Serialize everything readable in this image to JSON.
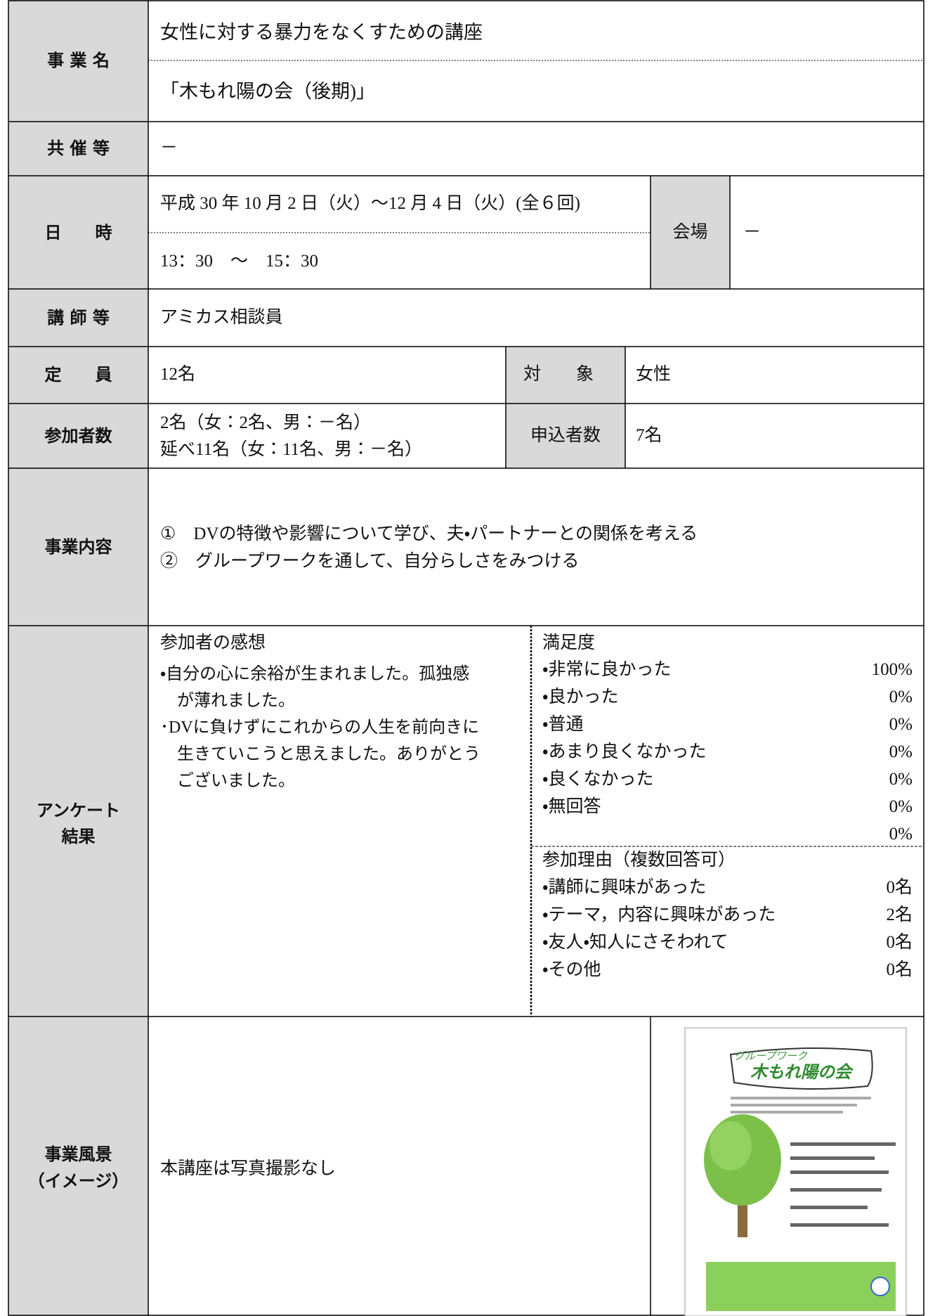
{
  "name": {
    "label": "事 業 名",
    "line1": "女性に対する暴力をなくすための講座",
    "line2": "「木もれ陽の会（後期)」"
  },
  "cosponsor": {
    "label": "共 催 等",
    "value": "－"
  },
  "datetime": {
    "label": "日　　時",
    "date": "平成 30 年 10 月 2 日（火）～12 月 4 日（火）(全６回)",
    "time": "13：30　～　15：30",
    "venue_label": "会場",
    "venue": "－"
  },
  "lecturer": {
    "label": "講 師 等",
    "value": "アミカス相談員"
  },
  "capacity": {
    "label": "定　　員",
    "value": "12名",
    "target_label": "対　　象",
    "target": "女性"
  },
  "participants": {
    "label": "参加者数",
    "line1": "2名（女：2名、男：－名）",
    "line2": "延べ11名（女：11名、男：－名）",
    "applicants_label": "申込者数",
    "applicants": "7名"
  },
  "content": {
    "label": "事業内容",
    "items": [
      "①　DVの特徴や影響について学び、夫・パートナーとの関係を考える",
      "②　グループワークを通して、自分らしさをみつける"
    ]
  },
  "survey": {
    "label": [
      "アンケート",
      "結果"
    ],
    "impressions": {
      "title": "参加者の感想",
      "lines": [
        "・自分の心に余裕が生まれました。孤独感",
        "　が薄れました。",
        "･DVに負けずにこれからの人生を前向きに",
        "　生きていこうと思えました。ありがとう",
        "　ございました。"
      ]
    },
    "satisfaction": {
      "title": "満足度",
      "items": [
        [
          "・非常に良かった",
          "100%"
        ],
        [
          "・良かった",
          "0%"
        ],
        [
          "・普通",
          "0%"
        ],
        [
          "・あまり良くなかった",
          "0%"
        ],
        [
          "・良くなかった",
          "0%"
        ],
        [
          "・無回答",
          "0%"
        ]
      ],
      "extra": "0%"
    },
    "reasons": {
      "title": "参加理由（複数回答可）",
      "items": [
        [
          "・講師に興味があった",
          "0名"
        ],
        [
          "・テーマ，内容に興味があった",
          "2名"
        ],
        [
          "・友人・知人にさそわれて",
          "0名"
        ],
        [
          "・その他",
          "0名"
        ]
      ]
    }
  },
  "scene": {
    "label": [
      "事業風景",
      "（イメージ）"
    ],
    "value": "本講座は写真撮影なし",
    "poster": {
      "subtitle": "グループワーク",
      "title": "木もれ陽の会"
    }
  }
}
